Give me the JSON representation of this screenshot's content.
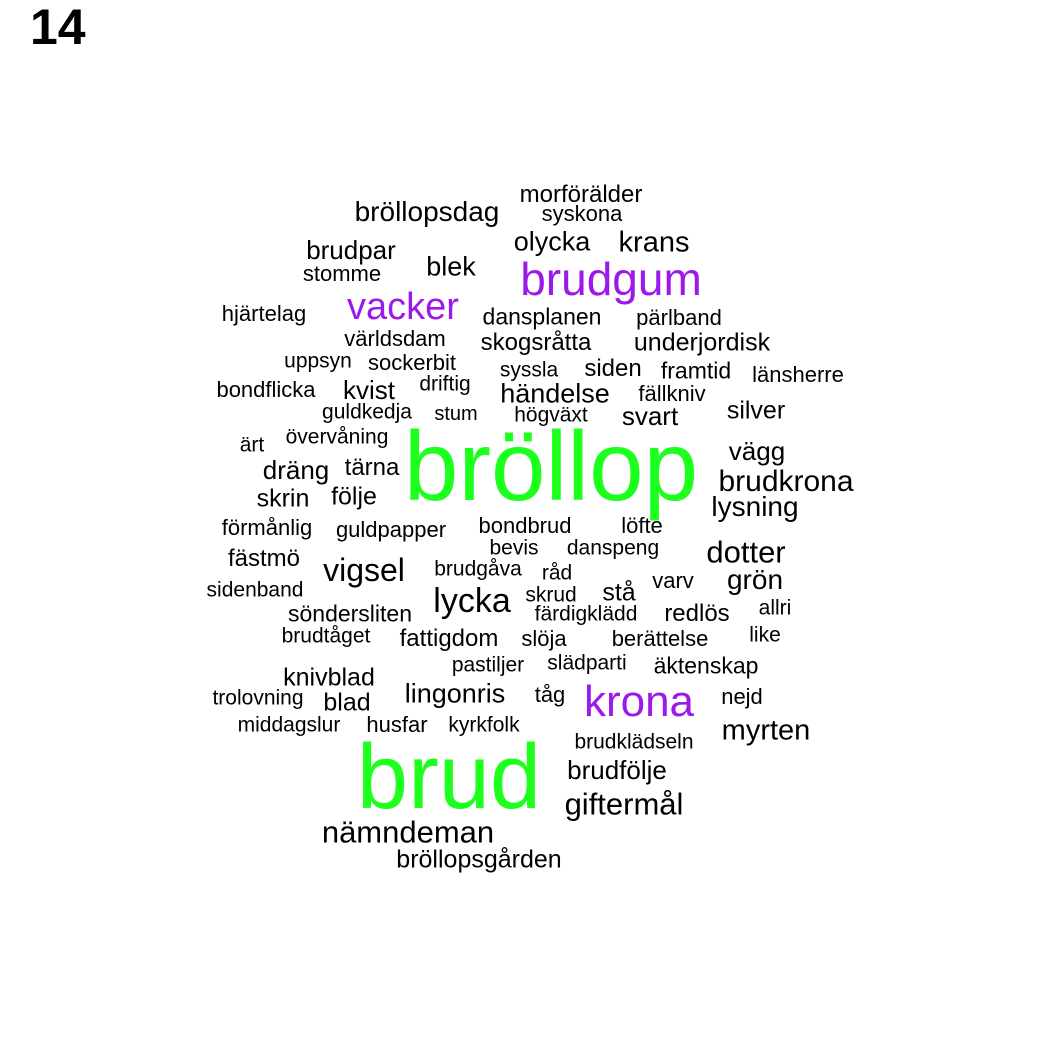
{
  "title": "14",
  "colors": {
    "top": "#1dff1d",
    "second": "#9b1aea",
    "default": "#000000"
  },
  "words": [
    {
      "text": "bröllop",
      "tier": "top"
    },
    {
      "text": "brud",
      "tier": "top"
    },
    {
      "text": "brudgum",
      "tier": "second"
    },
    {
      "text": "vacker",
      "tier": "second"
    },
    {
      "text": "krona",
      "tier": "second"
    },
    {
      "text": "morförälder",
      "tier": "default"
    },
    {
      "text": "bröllopsdag",
      "tier": "default"
    },
    {
      "text": "syskona",
      "tier": "default"
    },
    {
      "text": "olycka",
      "tier": "default"
    },
    {
      "text": "krans",
      "tier": "default"
    },
    {
      "text": "brudpar",
      "tier": "default"
    },
    {
      "text": "blek",
      "tier": "default"
    },
    {
      "text": "stomme",
      "tier": "default"
    },
    {
      "text": "hjärtelag",
      "tier": "default"
    },
    {
      "text": "dansplanen",
      "tier": "default"
    },
    {
      "text": "pärlband",
      "tier": "default"
    },
    {
      "text": "världsdam",
      "tier": "default"
    },
    {
      "text": "skogsråtta",
      "tier": "default"
    },
    {
      "text": "underjordisk",
      "tier": "default"
    },
    {
      "text": "uppsyn",
      "tier": "default"
    },
    {
      "text": "sockerbit",
      "tier": "default"
    },
    {
      "text": "syssla",
      "tier": "default"
    },
    {
      "text": "siden",
      "tier": "default"
    },
    {
      "text": "framtid",
      "tier": "default"
    },
    {
      "text": "länsherre",
      "tier": "default"
    },
    {
      "text": "driftig",
      "tier": "default"
    },
    {
      "text": "bondflicka",
      "tier": "default"
    },
    {
      "text": "kvist",
      "tier": "default"
    },
    {
      "text": "händelse",
      "tier": "default"
    },
    {
      "text": "fällkniv",
      "tier": "default"
    },
    {
      "text": "guldkedja",
      "tier": "default"
    },
    {
      "text": "stum",
      "tier": "default"
    },
    {
      "text": "högväxt",
      "tier": "default"
    },
    {
      "text": "svart",
      "tier": "default"
    },
    {
      "text": "silver",
      "tier": "default"
    },
    {
      "text": "övervåning",
      "tier": "default"
    },
    {
      "text": "ärt",
      "tier": "default"
    },
    {
      "text": "vägg",
      "tier": "default"
    },
    {
      "text": "dräng",
      "tier": "default"
    },
    {
      "text": "tärna",
      "tier": "default"
    },
    {
      "text": "brudkrona",
      "tier": "default"
    },
    {
      "text": "skrin",
      "tier": "default"
    },
    {
      "text": "följe",
      "tier": "default"
    },
    {
      "text": "lysning",
      "tier": "default"
    },
    {
      "text": "förmånlig",
      "tier": "default"
    },
    {
      "text": "guldpapper",
      "tier": "default"
    },
    {
      "text": "bondbrud",
      "tier": "default"
    },
    {
      "text": "löfte",
      "tier": "default"
    },
    {
      "text": "bevis",
      "tier": "default"
    },
    {
      "text": "danspeng",
      "tier": "default"
    },
    {
      "text": "dotter",
      "tier": "default"
    },
    {
      "text": "fästmö",
      "tier": "default"
    },
    {
      "text": "vigsel",
      "tier": "default"
    },
    {
      "text": "brudgåva",
      "tier": "default"
    },
    {
      "text": "råd",
      "tier": "default"
    },
    {
      "text": "varv",
      "tier": "default"
    },
    {
      "text": "grön",
      "tier": "default"
    },
    {
      "text": "sidenband",
      "tier": "default"
    },
    {
      "text": "lycka",
      "tier": "default"
    },
    {
      "text": "skrud",
      "tier": "default"
    },
    {
      "text": "stå",
      "tier": "default"
    },
    {
      "text": "allri",
      "tier": "default"
    },
    {
      "text": "söndersliten",
      "tier": "default"
    },
    {
      "text": "färdigklädd",
      "tier": "default"
    },
    {
      "text": "redlös",
      "tier": "default"
    },
    {
      "text": "brudtåget",
      "tier": "default"
    },
    {
      "text": "fattigdom",
      "tier": "default"
    },
    {
      "text": "slöja",
      "tier": "default"
    },
    {
      "text": "berättelse",
      "tier": "default"
    },
    {
      "text": "like",
      "tier": "default"
    },
    {
      "text": "pastiljer",
      "tier": "default"
    },
    {
      "text": "slädparti",
      "tier": "default"
    },
    {
      "text": "äktenskap",
      "tier": "default"
    },
    {
      "text": "knivblad",
      "tier": "default"
    },
    {
      "text": "trolovning",
      "tier": "default"
    },
    {
      "text": "blad",
      "tier": "default"
    },
    {
      "text": "lingonris",
      "tier": "default"
    },
    {
      "text": "tåg",
      "tier": "default"
    },
    {
      "text": "nejd",
      "tier": "default"
    },
    {
      "text": "middagslur",
      "tier": "default"
    },
    {
      "text": "husfar",
      "tier": "default"
    },
    {
      "text": "kyrkfolk",
      "tier": "default"
    },
    {
      "text": "myrten",
      "tier": "default"
    },
    {
      "text": "brudklädseln",
      "tier": "default"
    },
    {
      "text": "brudfölje",
      "tier": "default"
    },
    {
      "text": "giftermål",
      "tier": "default"
    },
    {
      "text": "nämndeman",
      "tier": "default"
    },
    {
      "text": "bröllopsgården",
      "tier": "default"
    }
  ]
}
